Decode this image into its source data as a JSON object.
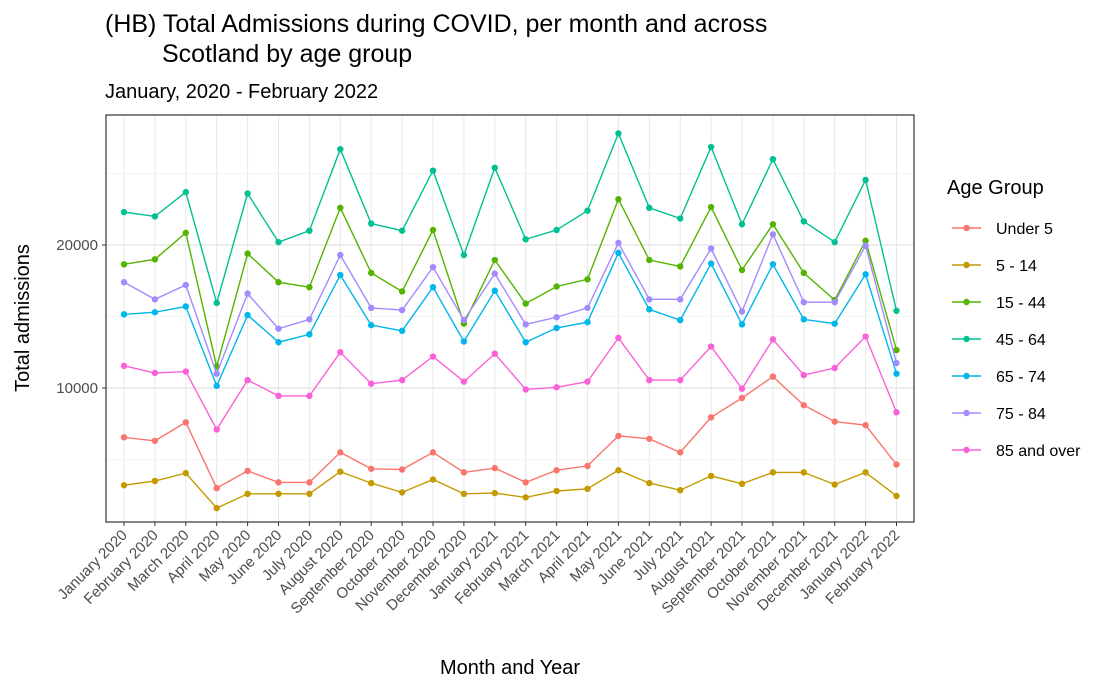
{
  "chart_data": {
    "type": "line",
    "title": "(HB) Total Admissions during COVID, per month and across Scotland by age group",
    "title_lines": [
      "(HB) Total Admissions during COVID, per month and across",
      "Scotland by age group"
    ],
    "subtitle": "January, 2020 - February 2022",
    "xlabel": "Month and Year",
    "ylabel": "Total admissions",
    "legend_title": "Age Group",
    "legend_position": "right",
    "grid": true,
    "ylim": [
      1000,
      29000
    ],
    "yticks": [
      10000,
      20000
    ],
    "categories": [
      "January 2020",
      "February 2020",
      "March 2020",
      "April 2020",
      "May 2020",
      "June 2020",
      "July 2020",
      "August 2020",
      "September 2020",
      "October 2020",
      "November 2020",
      "December 2020",
      "January 2021",
      "February 2021",
      "March 2021",
      "April 2021",
      "May 2021",
      "June 2021",
      "July 2021",
      "August 2021",
      "September 2021",
      "October 2021",
      "November 2021",
      "December 2021",
      "January 2022",
      "February 2022"
    ],
    "series": [
      {
        "name": "Under 5",
        "color": "#F8766D",
        "values": [
          6550,
          6300,
          7600,
          3000,
          4200,
          3400,
          3400,
          5500,
          4350,
          4300,
          5500,
          4100,
          4400,
          3400,
          4250,
          4550,
          6650,
          6450,
          5500,
          7950,
          9300,
          10800,
          8800,
          7650,
          7400,
          4650
        ]
      },
      {
        "name": "5 - 14",
        "color": "#C49A00",
        "values": [
          3200,
          3500,
          4050,
          1600,
          2600,
          2600,
          2600,
          4150,
          3350,
          2700,
          3600,
          2600,
          2650,
          2350,
          2800,
          2950,
          4250,
          3350,
          2850,
          3850,
          3300,
          4100,
          4100,
          3250,
          4100,
          2450
        ]
      },
      {
        "name": "15 - 44",
        "color": "#53B400",
        "values": [
          18650,
          19000,
          20850,
          11500,
          19400,
          17400,
          17050,
          22600,
          18050,
          16750,
          21050,
          14500,
          18950,
          15900,
          17100,
          17600,
          23200,
          18950,
          18500,
          22650,
          18250,
          21450,
          18050,
          16150,
          20300,
          12650
        ]
      },
      {
        "name": "45 - 64",
        "color": "#00C094",
        "values": [
          22300,
          22000,
          23700,
          15950,
          23600,
          20200,
          21000,
          26700,
          21500,
          21000,
          25200,
          19300,
          25400,
          20400,
          21050,
          22400,
          27800,
          22600,
          21850,
          26850,
          21450,
          26000,
          21650,
          20200,
          24550,
          15400
        ]
      },
      {
        "name": "65 - 74",
        "color": "#00B6EB",
        "values": [
          15150,
          15300,
          15700,
          10150,
          15100,
          13200,
          13750,
          17900,
          14400,
          14000,
          17050,
          13250,
          16800,
          13200,
          14200,
          14600,
          19450,
          15500,
          14750,
          18700,
          14450,
          18650,
          14800,
          14500,
          17950,
          11000
        ]
      },
      {
        "name": "75 - 84",
        "color": "#A58AFF",
        "values": [
          17400,
          16200,
          17200,
          11000,
          16600,
          14150,
          14800,
          19300,
          15600,
          15450,
          18450,
          14750,
          18000,
          14450,
          14950,
          15600,
          20150,
          16200,
          16200,
          19750,
          15350,
          20750,
          16000,
          16000,
          19950,
          11750
        ]
      },
      {
        "name": "85 and over",
        "color": "#FB61D7",
        "values": [
          11550,
          11050,
          11150,
          7100,
          10550,
          9450,
          9450,
          12500,
          10300,
          10550,
          12200,
          10450,
          12400,
          9900,
          10050,
          10450,
          13500,
          10550,
          10550,
          12900,
          9950,
          13400,
          10900,
          11400,
          13600,
          8300
        ]
      }
    ]
  }
}
